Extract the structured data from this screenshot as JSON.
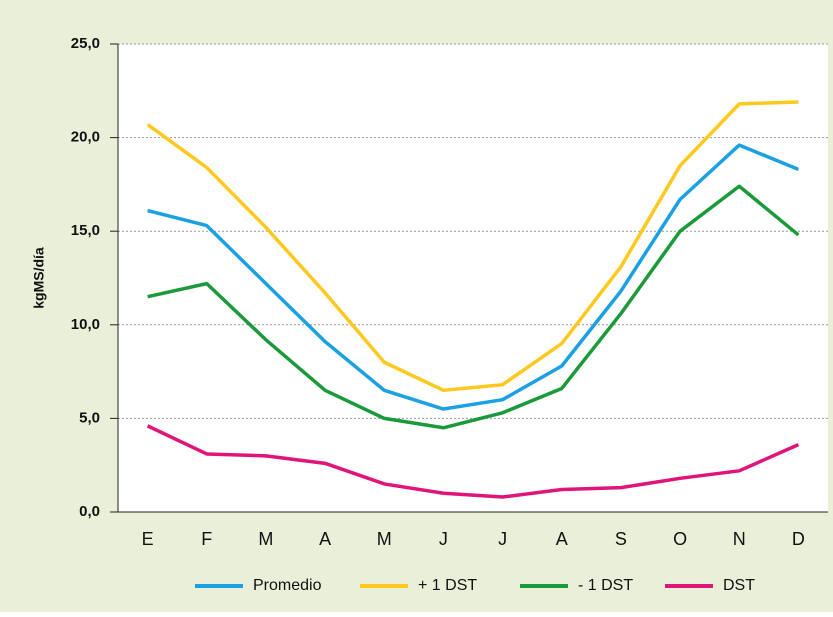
{
  "chart_data": {
    "type": "line",
    "y_label": "kgMS/día",
    "categories": [
      "E",
      "F",
      "M",
      "A",
      "M",
      "J",
      "J",
      "A",
      "S",
      "O",
      "N",
      "D"
    ],
    "series": [
      {
        "name": "Promedio",
        "color": "#1ba1e2",
        "values": [
          16.1,
          15.3,
          12.2,
          9.1,
          6.5,
          5.5,
          6.0,
          7.8,
          11.8,
          16.7,
          19.6,
          18.3
        ]
      },
      {
        "name": "+ 1 DST",
        "color": "#ffc81e",
        "values": [
          20.7,
          18.4,
          15.2,
          11.7,
          8.0,
          6.5,
          6.8,
          9.0,
          13.1,
          18.5,
          21.8,
          21.9
        ]
      },
      {
        "name": "- 1 DST",
        "color": "#1a9a3a",
        "values": [
          11.5,
          12.2,
          9.2,
          6.5,
          5.0,
          4.5,
          5.3,
          6.6,
          10.6,
          15.0,
          17.4,
          14.8
        ]
      },
      {
        "name": "DST",
        "color": "#e0157a",
        "values": [
          4.6,
          3.1,
          3.0,
          2.6,
          1.5,
          1.0,
          0.8,
          1.2,
          1.3,
          1.8,
          2.2,
          3.6
        ]
      }
    ],
    "ylim": [
      0,
      25
    ],
    "yticks": [
      {
        "value": 0,
        "label": "0,0"
      },
      {
        "value": 5,
        "label": "5,0"
      },
      {
        "value": 10,
        "label": "10,0"
      },
      {
        "value": 15,
        "label": "15,0"
      },
      {
        "value": 20,
        "label": "20,0"
      },
      {
        "value": 25,
        "label": "25,0"
      }
    ],
    "grid": true,
    "legend": "bottom"
  }
}
